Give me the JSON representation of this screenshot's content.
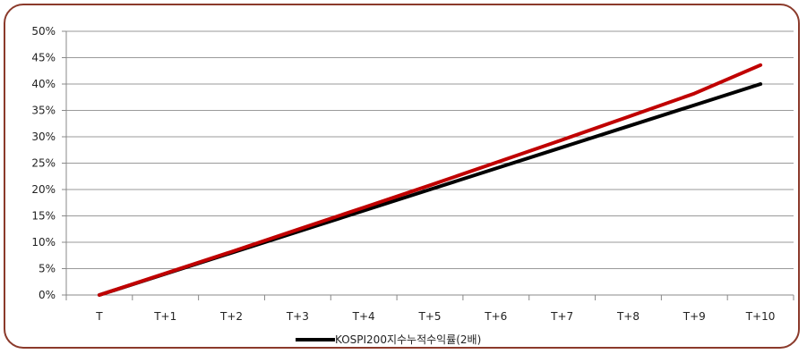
{
  "chart_data": {
    "type": "line",
    "categories": [
      "T",
      "T+1",
      "T+2",
      "T+3",
      "T+4",
      "T+5",
      "T+6",
      "T+7",
      "T+8",
      "T+9",
      "T+10"
    ],
    "series": [
      {
        "name": "KOSPI200지수누적수익률(2배)",
        "color": "#000000",
        "values": [
          0,
          4,
          8,
          12,
          16,
          20,
          24,
          28,
          32,
          36,
          40
        ]
      },
      {
        "color": "#c00000",
        "values": [
          0,
          4.1,
          8.2,
          12.4,
          16.6,
          20.8,
          25.1,
          29.4,
          33.8,
          38.2,
          43.6
        ]
      }
    ],
    "yticks": [
      "0%",
      "5%",
      "10%",
      "15%",
      "20%",
      "25%",
      "30%",
      "35%",
      "40%",
      "45%",
      "50%"
    ],
    "ylim": [
      0,
      50
    ],
    "grid": "horizontal",
    "legend": "bottom-center"
  }
}
